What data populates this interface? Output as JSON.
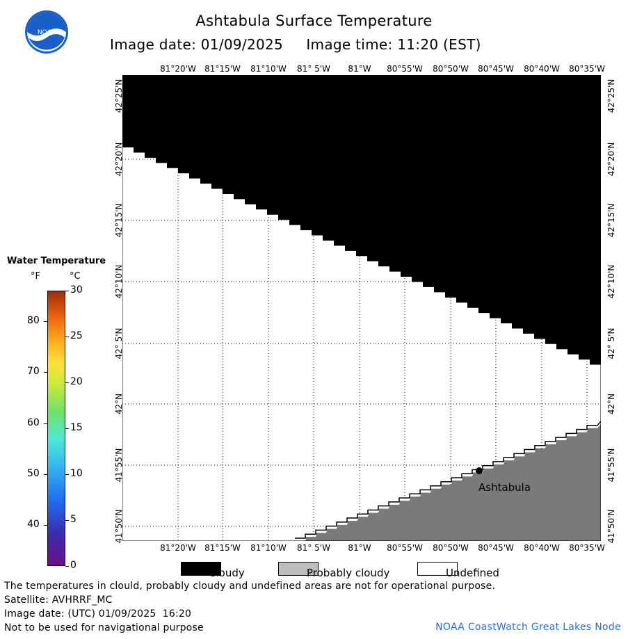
{
  "header": {
    "title": "Ashtabula Surface Temperature",
    "image_date_label": "Image date: 01/09/2025",
    "image_time_label": "Image time: 11:20 (EST)"
  },
  "logo": {
    "text": "NOAA",
    "icon": "noaa-logo-icon"
  },
  "map": {
    "longitude_labels": [
      "81°20'W",
      "81°15'W",
      "81°10'W",
      "81° 5'W",
      "81°W",
      "80°55'W",
      "80°50'W",
      "80°45'W",
      "80°40'W",
      "80°35'W"
    ],
    "latitude_labels": [
      "42°25'N",
      "42°20'N",
      "42°15'N",
      "42°10'N",
      "42° 5'N",
      "42°N",
      "41°55'N",
      "41°50'N"
    ],
    "place_label": "Ashtabula",
    "colors": {
      "cloudy": "#000000",
      "probably_cloudy": "#808080",
      "undefined": "#ffffff"
    }
  },
  "legend": {
    "title": "Water Temperature",
    "unit_f": "°F",
    "unit_c": "°C",
    "fahrenheit_ticks": [
      "80",
      "70",
      "60",
      "50",
      "40"
    ],
    "celsius_ticks": [
      "30",
      "25",
      "20",
      "15",
      "10",
      "5",
      "0"
    ]
  },
  "key": {
    "cloudy": "Cloudy",
    "probably_cloudy": "Probably cloudy",
    "undefined": "Undefined"
  },
  "footer": {
    "line1": "The temperatures in clould, probably cloudy and undefined areas are not for operational purpose.",
    "line2": "Satellite: AVHRRF_MC",
    "line3": "Image date: (UTC) 01/09/2025  16:20",
    "line4": "Not to be used for navigational purpose",
    "credit": "NOAA CoastWatch Great Lakes Node"
  }
}
